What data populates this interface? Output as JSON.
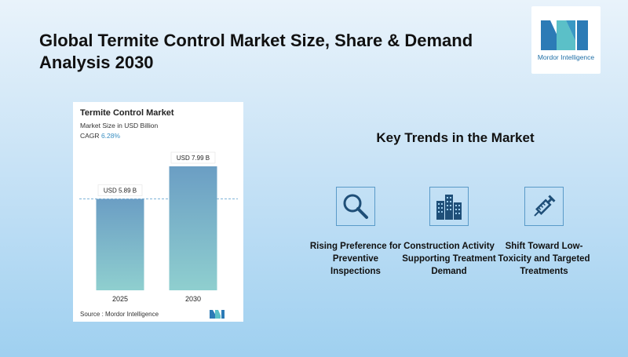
{
  "header": {
    "title": "Global Termite Control Market Size, Share & Demand Analysis 2030",
    "logo_text": "Mordor Intelligence"
  },
  "chart_card": {
    "title": "Termite Control Market",
    "subtitle": "Market Size in USD Billion",
    "cagr_label": "CAGR",
    "cagr_value": "6.28%",
    "source": "Source :  Mordor Intelligence"
  },
  "chart_data": {
    "type": "bar",
    "title": "Termite Control Market",
    "subtitle": "Market Size in USD Billion",
    "categories": [
      "2025",
      "2030"
    ],
    "values": [
      5.89,
      7.99
    ],
    "data_labels": [
      "USD 5.89 B",
      "USD 7.99 B"
    ],
    "ylim": [
      0,
      7.99
    ],
    "grid": false,
    "reference_line": 5.89
  },
  "key_trends": {
    "heading": "Key Trends in the Market",
    "items": [
      {
        "icon": "magnifier-icon",
        "label": "Rising Preference for Preventive Inspections"
      },
      {
        "icon": "buildings-icon",
        "label": "Construction Activity Supporting Treatment Demand"
      },
      {
        "icon": "syringe-icon",
        "label": "Shift Toward Low-Toxicity and Targeted Treatments"
      }
    ]
  },
  "colors": {
    "bar_top": "#6b9ec4",
    "bar_bottom": "#8fcfcf",
    "accent": "#3a8fc2",
    "icon_stroke": "#1f4f78"
  }
}
